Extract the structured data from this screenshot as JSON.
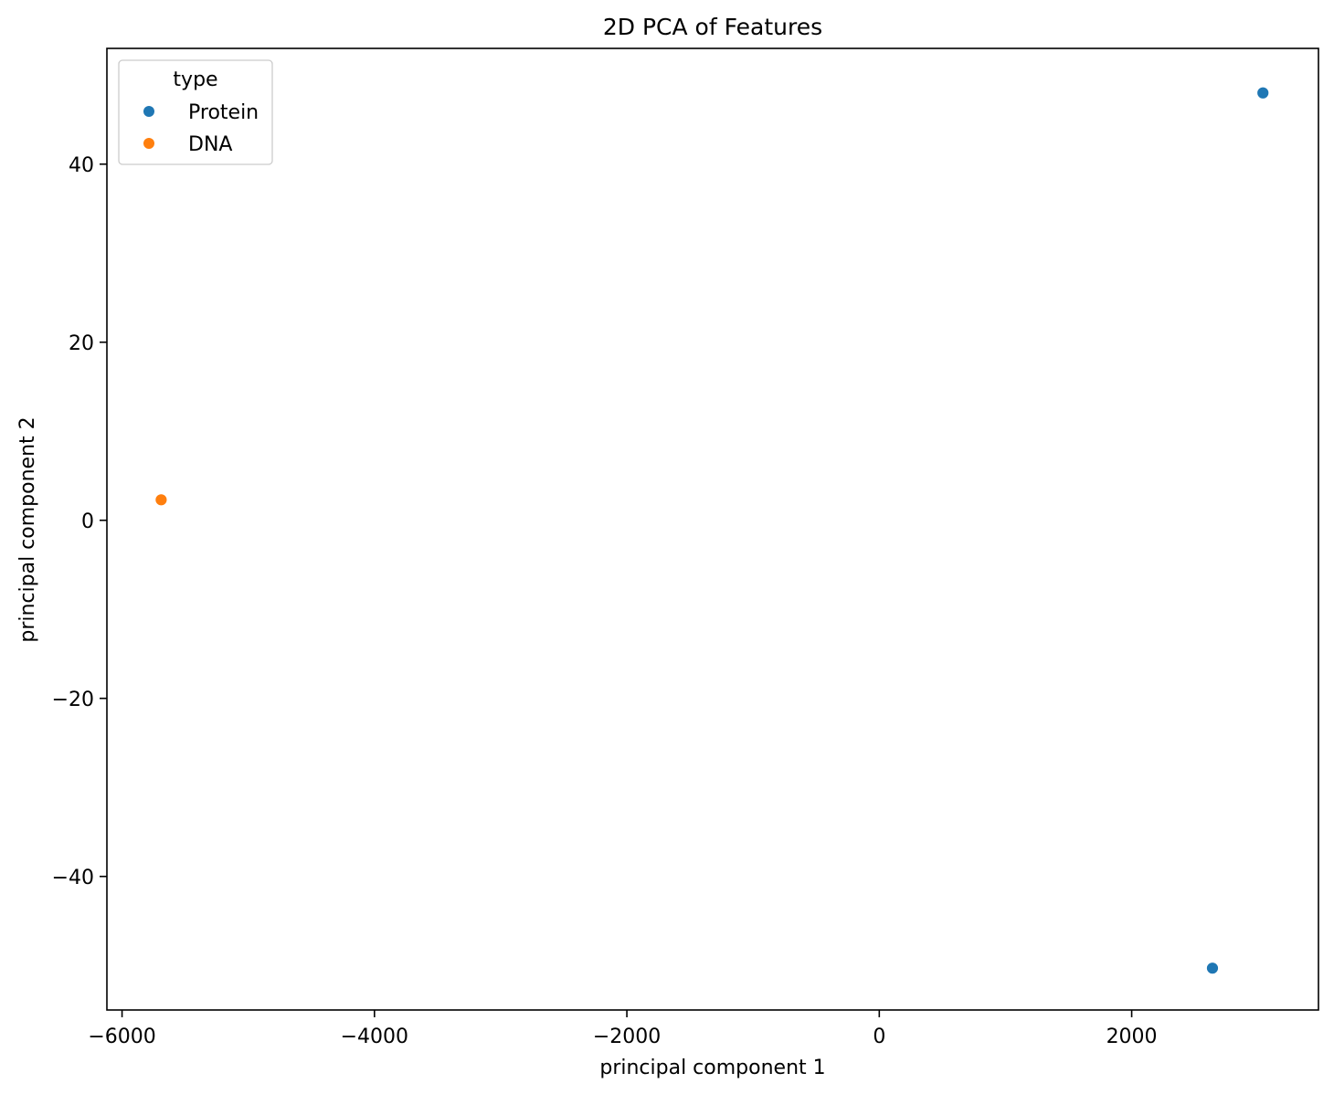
{
  "chart_data": {
    "type": "scatter",
    "title": "2D PCA of Features",
    "xlabel": "principal component 1",
    "ylabel": "principal component 2",
    "xlim": [
      -6120,
      3480
    ],
    "ylim": [
      -55,
      53
    ],
    "xticks": [
      -6000,
      -4000,
      -2000,
      0,
      2000
    ],
    "xtick_labels": [
      "−6000",
      "−4000",
      "−2000",
      "0",
      "2000"
    ],
    "yticks": [
      -40,
      -20,
      0,
      20,
      40
    ],
    "ytick_labels": [
      "−40",
      "−20",
      "0",
      "20",
      "40"
    ],
    "grid": false,
    "legend": {
      "title": "type",
      "placement": "top-left",
      "entries": [
        {
          "label": "Protein",
          "color": "#1f77b4"
        },
        {
          "label": "DNA",
          "color": "#ff7f0e"
        }
      ]
    },
    "series": [
      {
        "name": "Protein",
        "color": "#1f77b4",
        "points": [
          {
            "x": 3040,
            "y": 48.0
          },
          {
            "x": 2640,
            "y": -50.3
          }
        ]
      },
      {
        "name": "DNA",
        "color": "#ff7f0e",
        "points": [
          {
            "x": -5690,
            "y": 2.3
          }
        ]
      }
    ]
  }
}
